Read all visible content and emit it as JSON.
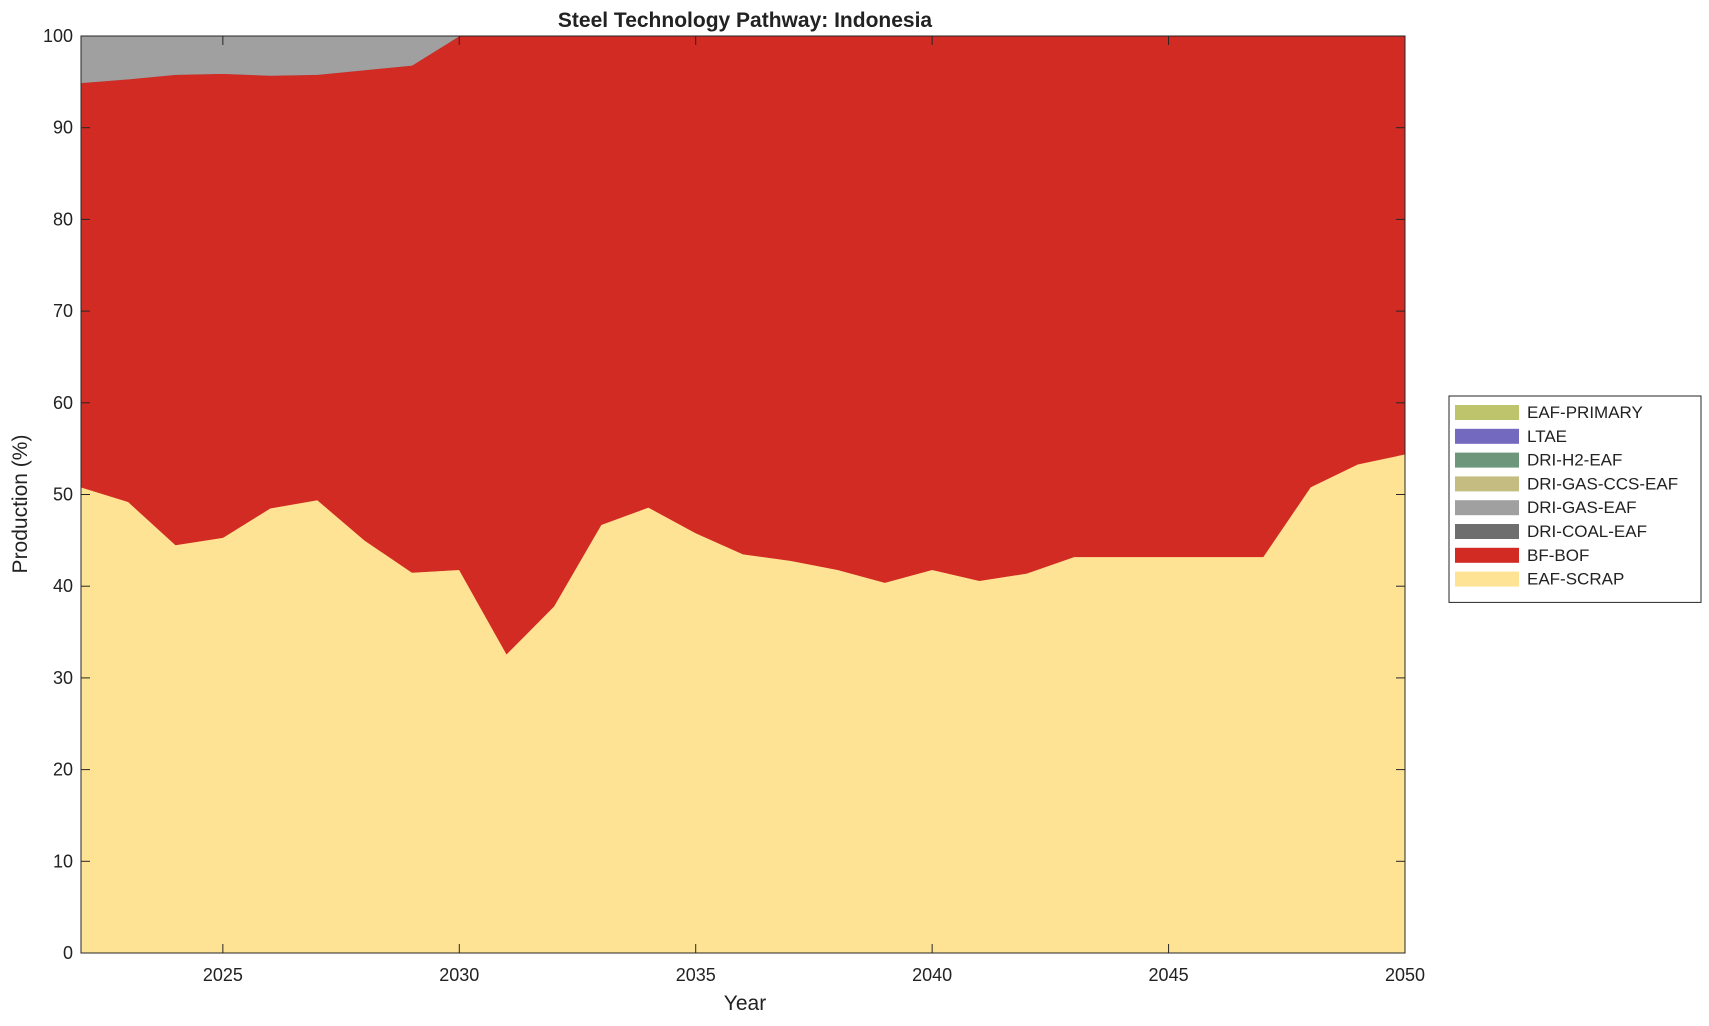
{
  "chart_data": {
    "type": "area",
    "stacked": true,
    "title": "Steel Technology Pathway: Indonesia",
    "xlabel": "Year",
    "ylabel": "Production (%)",
    "xlim": [
      2022,
      2050
    ],
    "ylim": [
      0,
      100
    ],
    "xticks": [
      2025,
      2030,
      2035,
      2040,
      2045,
      2050
    ],
    "xtick_labels": [
      "2025",
      "2030",
      "2035",
      "2040",
      "2045",
      "2050"
    ],
    "yticks": [
      0,
      10,
      20,
      30,
      40,
      50,
      60,
      70,
      80,
      90,
      100
    ],
    "ytick_labels": [
      "0",
      "10",
      "20",
      "30",
      "40",
      "50",
      "60",
      "70",
      "80",
      "90",
      "100"
    ],
    "grid": false,
    "legend_position": "right",
    "x": [
      2022,
      2023,
      2024,
      2025,
      2026,
      2027,
      2028,
      2029,
      2030,
      2031,
      2032,
      2033,
      2034,
      2035,
      2036,
      2037,
      2038,
      2039,
      2040,
      2041,
      2042,
      2043,
      2044,
      2045,
      2046,
      2047,
      2048,
      2049,
      2050
    ],
    "series": [
      {
        "name": "EAF-SCRAP",
        "color": "#FFE394",
        "values": [
          50.8,
          49.2,
          44.5,
          45.3,
          48.5,
          49.4,
          45.0,
          41.5,
          41.8,
          32.6,
          37.8,
          46.7,
          48.6,
          45.8,
          43.5,
          42.8,
          41.8,
          40.4,
          41.8,
          40.6,
          41.4,
          43.2,
          43.2,
          43.2,
          43.2,
          43.2,
          50.8,
          53.3,
          54.4
        ]
      },
      {
        "name": "BF-BOF",
        "color": "#D22B24",
        "values": [
          44.1,
          46.1,
          51.3,
          50.6,
          47.2,
          46.4,
          51.3,
          55.3,
          58.2,
          67.4,
          62.2,
          53.3,
          51.4,
          54.2,
          56.5,
          57.2,
          58.2,
          59.6,
          58.2,
          59.4,
          58.6,
          56.8,
          56.8,
          56.8,
          56.8,
          56.8,
          49.2,
          46.7,
          45.6
        ]
      },
      {
        "name": "DRI-COAL-EAF",
        "color": "#6E6E6E",
        "values": [
          0,
          0,
          0,
          0,
          0,
          0,
          0,
          0,
          0,
          0,
          0,
          0,
          0,
          0,
          0,
          0,
          0,
          0,
          0,
          0,
          0,
          0,
          0,
          0,
          0,
          0,
          0,
          0,
          0
        ]
      },
      {
        "name": "DRI-GAS-EAF",
        "color": "#A0A0A0",
        "values": [
          5.1,
          4.7,
          4.2,
          4.1,
          4.3,
          4.2,
          3.7,
          3.2,
          0,
          0,
          0,
          0,
          0,
          0,
          0,
          0,
          0,
          0,
          0,
          0,
          0,
          0,
          0,
          0,
          0,
          0,
          0,
          0,
          0
        ]
      },
      {
        "name": "DRI-GAS-CCS-EAF",
        "color": "#C5BC82",
        "values": [
          0,
          0,
          0,
          0,
          0,
          0,
          0,
          0,
          0,
          0,
          0,
          0,
          0,
          0,
          0,
          0,
          0,
          0,
          0,
          0,
          0,
          0,
          0,
          0,
          0,
          0,
          0,
          0,
          0
        ]
      },
      {
        "name": "DRI-H2-EAF",
        "color": "#6D967A",
        "values": [
          0,
          0,
          0,
          0,
          0,
          0,
          0,
          0,
          0,
          0,
          0,
          0,
          0,
          0,
          0,
          0,
          0,
          0,
          0,
          0,
          0,
          0,
          0,
          0,
          0,
          0,
          0,
          0,
          0
        ]
      },
      {
        "name": "LTAE",
        "color": "#7369BF",
        "values": [
          0,
          0,
          0,
          0,
          0,
          0,
          0,
          0,
          0,
          0,
          0,
          0,
          0,
          0,
          0,
          0,
          0,
          0,
          0,
          0,
          0,
          0,
          0,
          0,
          0,
          0,
          0,
          0,
          0
        ]
      },
      {
        "name": "EAF-PRIMARY",
        "color": "#BDC46B",
        "values": [
          0,
          0,
          0,
          0,
          0,
          0,
          0,
          0,
          0,
          0,
          0,
          0,
          0,
          0,
          0,
          0,
          0,
          0,
          0,
          0,
          0,
          0,
          0,
          0,
          0,
          0,
          0,
          0,
          0
        ]
      }
    ],
    "legend_order": [
      "EAF-PRIMARY",
      "LTAE",
      "DRI-H2-EAF",
      "DRI-GAS-CCS-EAF",
      "DRI-GAS-EAF",
      "DRI-COAL-EAF",
      "BF-BOF",
      "EAF-SCRAP"
    ]
  }
}
